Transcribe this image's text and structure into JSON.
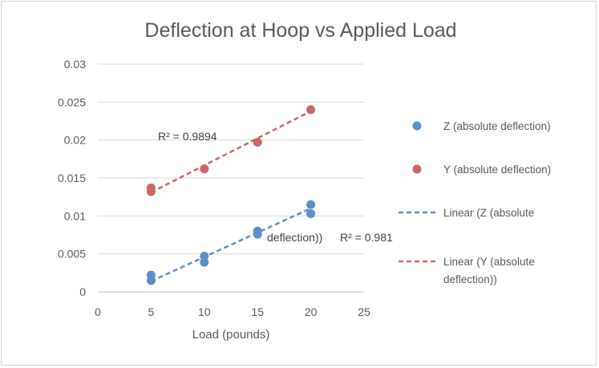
{
  "chart_data": {
    "type": "scatter",
    "title": "Deflection at Hoop vs Applied Load",
    "xlabel": "Load (pounds)",
    "ylabel": "",
    "xlim": [
      0,
      25
    ],
    "ylim": [
      0,
      0.03
    ],
    "x_ticks": [
      "0",
      "5",
      "10",
      "15",
      "20",
      "25"
    ],
    "y_ticks": [
      "0",
      "0.005",
      "0.01",
      "0.015",
      "0.02",
      "0.025",
      "0.03"
    ],
    "grid": "horizontal",
    "legend_position": "right",
    "series": [
      {
        "name": "Z (absolute deflection)",
        "color": "#5b8fc9",
        "points": [
          [
            5,
            0.0015
          ],
          [
            5,
            0.0022
          ],
          [
            10,
            0.0039
          ],
          [
            10,
            0.0047
          ],
          [
            15,
            0.0076
          ],
          [
            15,
            0.008
          ],
          [
            20,
            0.0103
          ],
          [
            20,
            0.0115
          ]
        ],
        "trendline": {
          "legend_lines": [
            "Linear (Z (absolute",
            "deflection))"
          ],
          "r2_label": "R² = 0.981",
          "x_range": [
            5,
            20
          ],
          "y_range": [
            0.0014,
            0.011
          ]
        }
      },
      {
        "name": "Y (absolute deflection)",
        "color": "#d06565",
        "points": [
          [
            5,
            0.0132
          ],
          [
            5,
            0.0137
          ],
          [
            10,
            0.0162
          ],
          [
            15,
            0.0197
          ],
          [
            20,
            0.024
          ]
        ],
        "trendline": {
          "legend_lines": [
            "Linear (Y (absolute",
            "deflection))"
          ],
          "r2_label": "R² = 0.9894",
          "x_range": [
            5,
            20
          ],
          "y_range": [
            0.0131,
            0.0238
          ]
        }
      }
    ]
  }
}
